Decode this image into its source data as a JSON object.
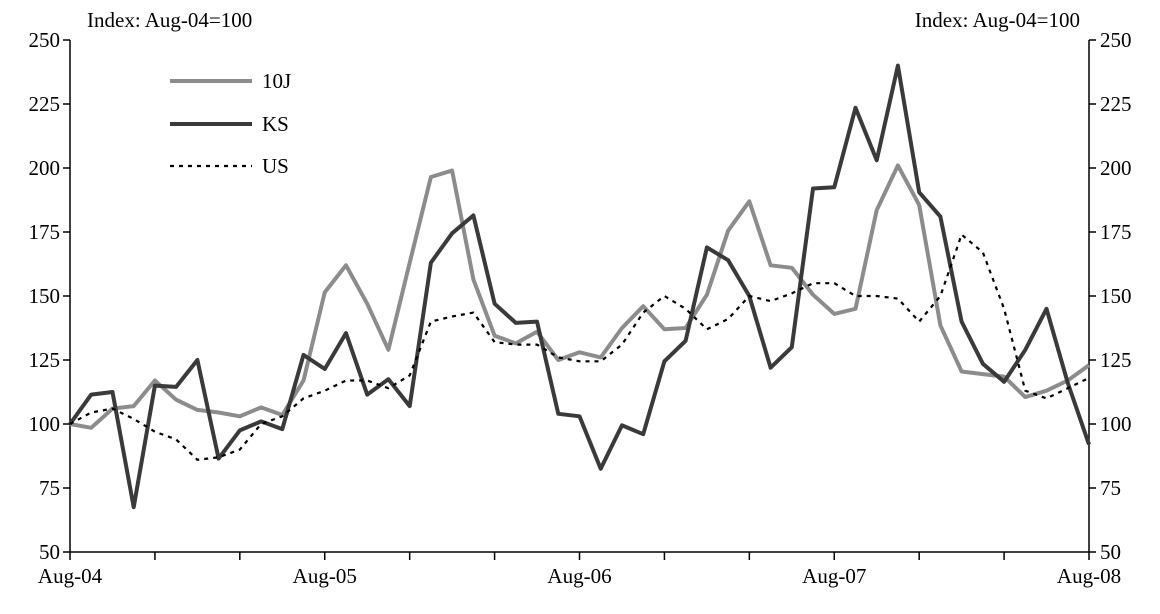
{
  "chart_data": {
    "type": "line",
    "ylabel_left": "Index: Aug-04=100",
    "ylabel_right": "Index: Aug-04=100",
    "ylim": [
      50,
      250
    ],
    "yticks": [
      50,
      75,
      100,
      125,
      150,
      175,
      200,
      225,
      250
    ],
    "xlim": [
      0,
      48
    ],
    "xtick_labels": [
      "Aug-04",
      "Aug-05",
      "Aug-06",
      "Aug-07",
      "Aug-08"
    ],
    "legend_position": "top-left",
    "grid": false,
    "series": [
      {
        "name": "10J",
        "color": "#8c8c8c",
        "style": "solid",
        "values": [
          100,
          98.5,
          106,
          107,
          117,
          109.5,
          105.5,
          104.5,
          103,
          106.5,
          103.5,
          117,
          151.5,
          162,
          147,
          129,
          163,
          196.5,
          199,
          156.5,
          134.5,
          131.5,
          136,
          125,
          128,
          126,
          137.5,
          146,
          137,
          137.5,
          150.5,
          175.5,
          187,
          162,
          161,
          150.5,
          143,
          145,
          183.5,
          201,
          185.5,
          138.5,
          120.5,
          119.5,
          118.5,
          110.5,
          113,
          117,
          123
        ]
      },
      {
        "name": "KS",
        "color": "#3a3a3a",
        "style": "solid",
        "values": [
          100,
          111.5,
          112.5,
          67.5,
          115,
          114.5,
          125,
          86.5,
          97.5,
          101,
          98,
          127,
          121.5,
          135.5,
          111.5,
          117.5,
          107,
          163,
          174.5,
          181.5,
          147,
          139.5,
          140,
          104,
          103,
          82.5,
          99.5,
          96,
          124.5,
          132.5,
          169,
          164,
          150,
          122,
          130,
          192,
          192.5,
          223.5,
          203,
          240,
          190.5,
          181,
          140,
          123.5,
          116.5,
          129,
          145,
          116,
          92
        ]
      },
      {
        "name": "US",
        "color": "#000000",
        "style": "dotted",
        "values": [
          100,
          104.5,
          106,
          102,
          97,
          94,
          86,
          87,
          90,
          100,
          103,
          110,
          113,
          117,
          117,
          114,
          119,
          140,
          142,
          143.5,
          132,
          131,
          131,
          126,
          124.5,
          124.5,
          131,
          143.5,
          150,
          145,
          137,
          141,
          150,
          148,
          151,
          155,
          155,
          150,
          150,
          149,
          140,
          150,
          174,
          167,
          145,
          113,
          110,
          114,
          118
        ]
      }
    ]
  }
}
